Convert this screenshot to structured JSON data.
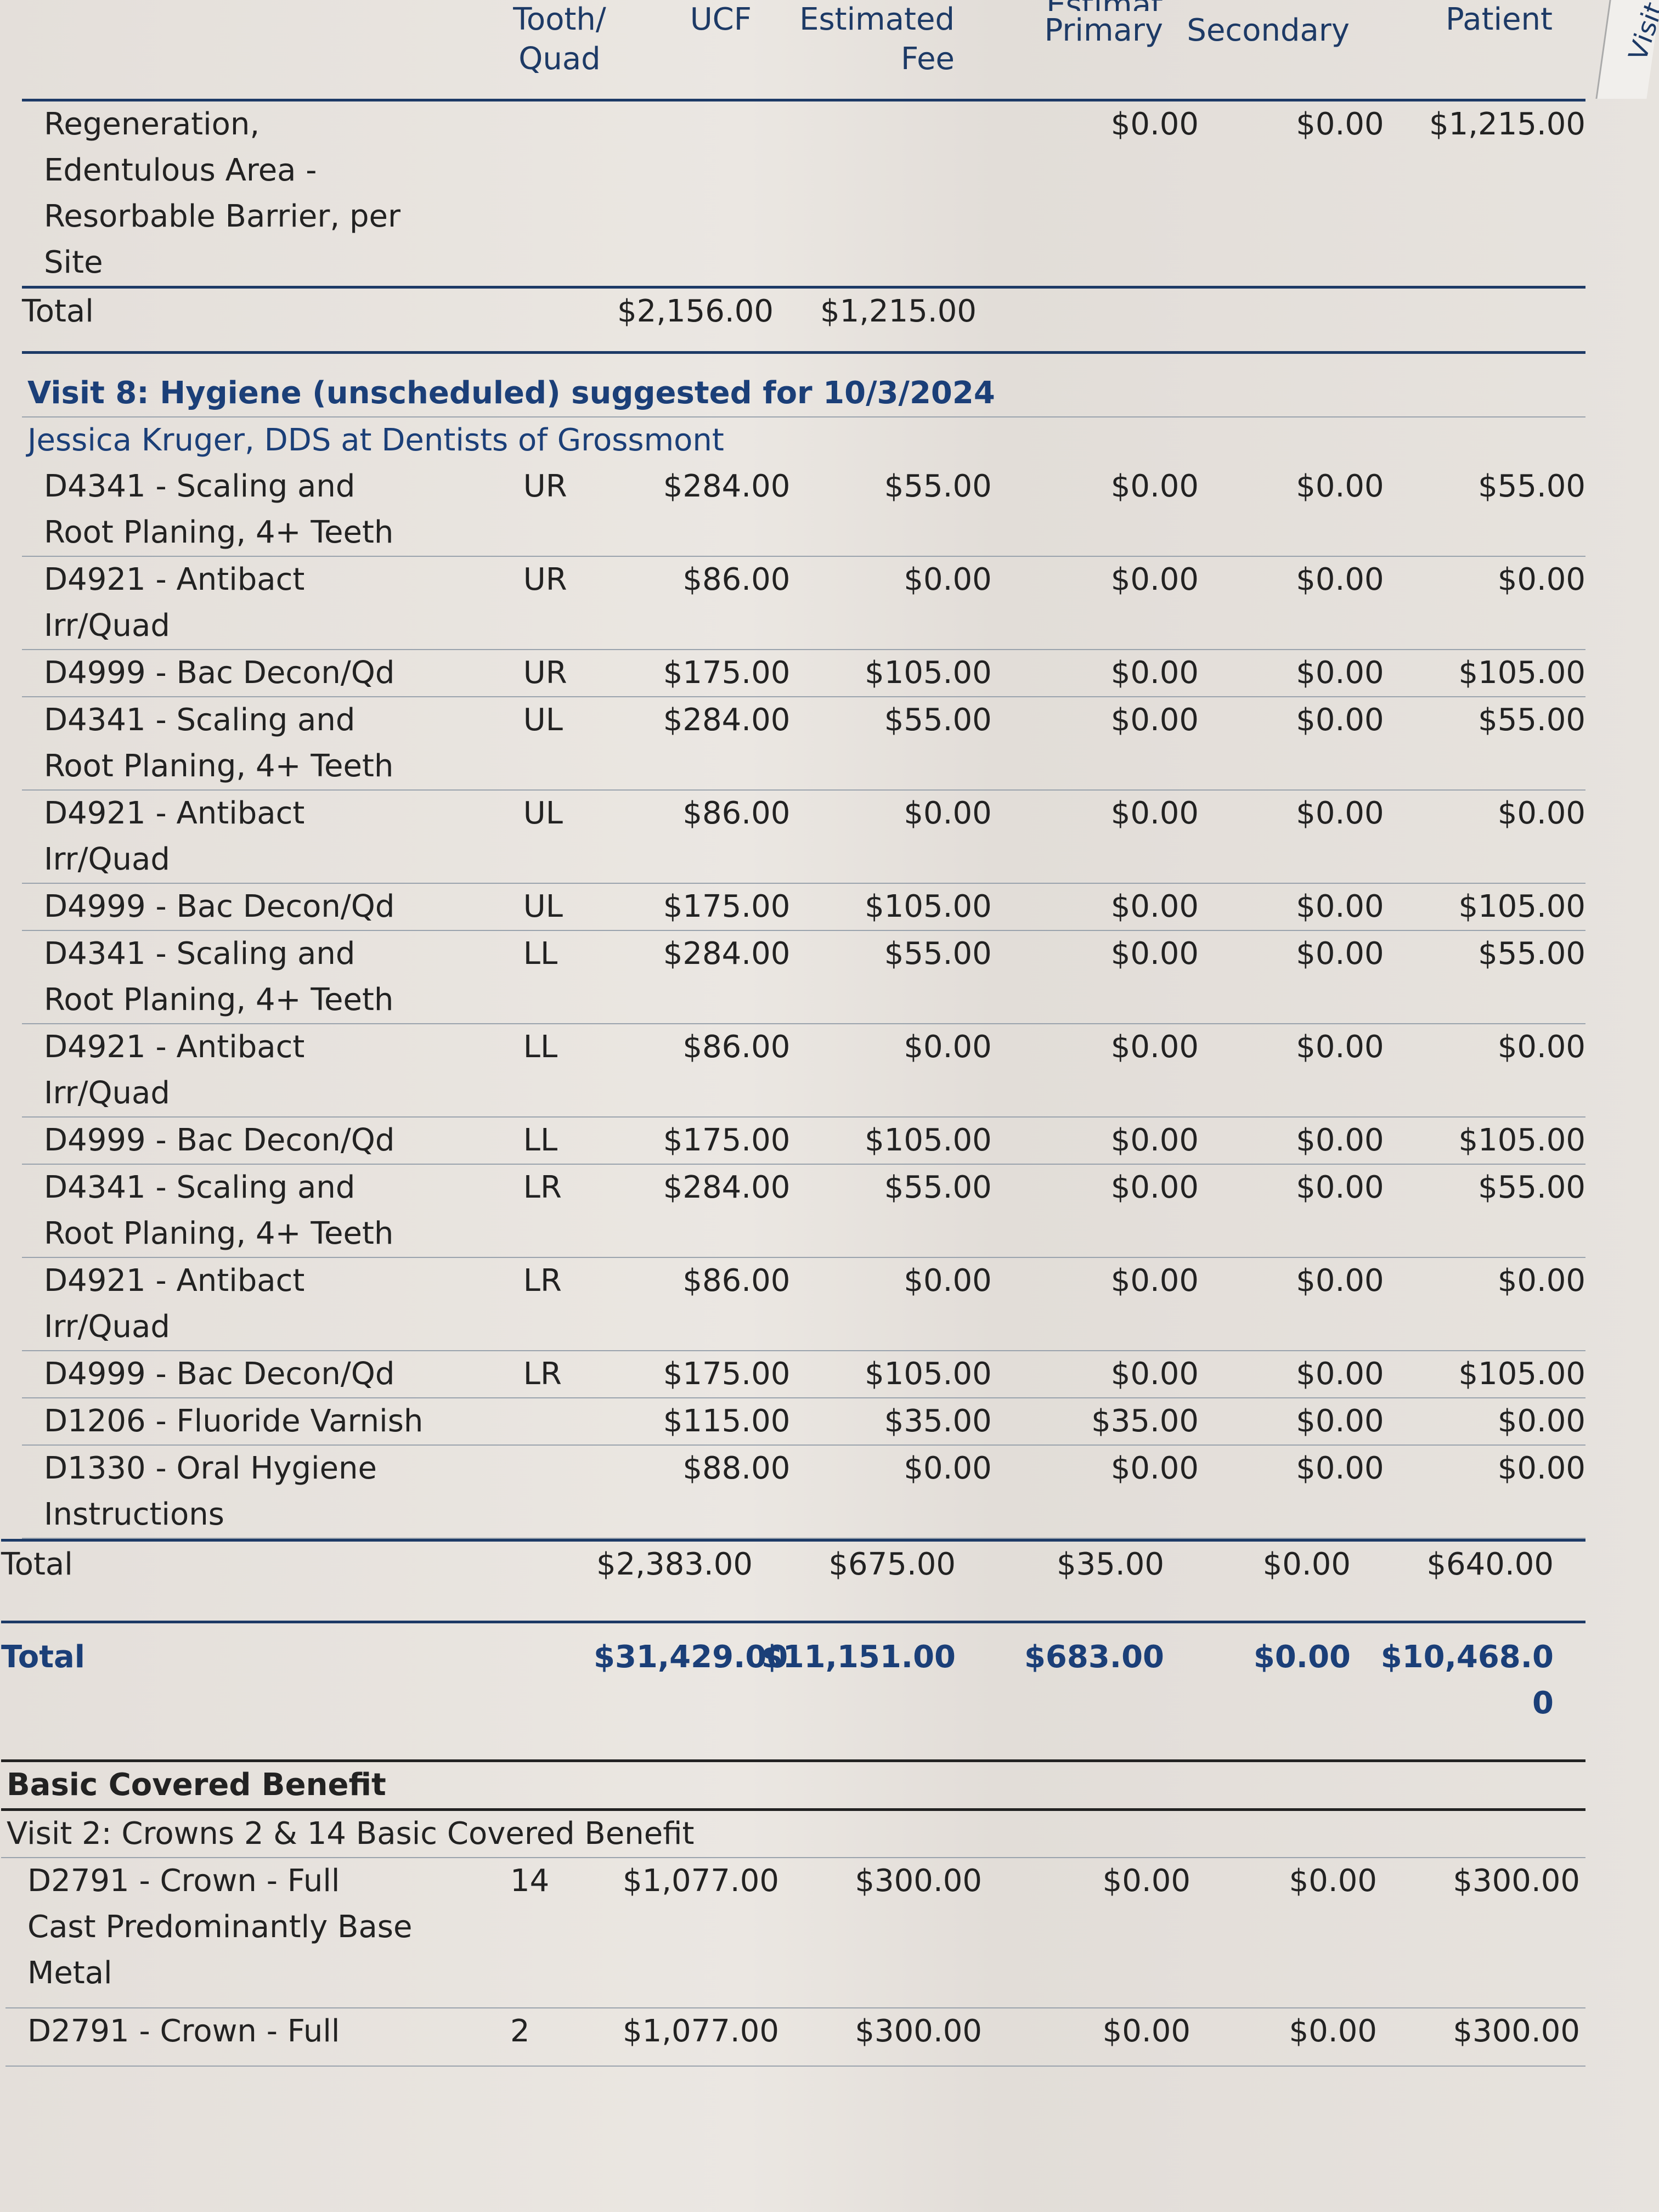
{
  "columns": {
    "tooth_quad": "Tooth/\nQuad",
    "ucf": "UCF",
    "estimated_fee": "Estimated\nFee",
    "primary_partial": "Estimat",
    "primary": "Primary",
    "secondary": "Secondary",
    "patient": "Patient"
  },
  "side_tab": "Visit",
  "previous_item": {
    "description": "Regeneration,\nEdentulous Area -\nResorbable Barrier, per\nSite",
    "tooth": "",
    "ucf": "",
    "fee": "",
    "primary": "$0.00",
    "secondary": "$0.00",
    "patient": "$1,215.00"
  },
  "previous_total": {
    "label": "Total",
    "ucf": "$2,156.00",
    "fee": "$1,215.00",
    "primary": "",
    "secondary": "",
    "patient": ""
  },
  "visit8": {
    "title": "Visit 8: Hygiene (unscheduled) suggested for 10/3/2024",
    "provider": "Jessica Kruger, DDS at Dentists of Grossmont",
    "items": [
      {
        "description": "D4341 - Scaling and\nRoot Planing, 4+ Teeth",
        "tooth": "UR",
        "ucf": "$284.00",
        "fee": "$55.00",
        "primary": "$0.00",
        "secondary": "$0.00",
        "patient": "$55.00"
      },
      {
        "description": "D4921 - Antibact\nIrr/Quad",
        "tooth": "UR",
        "ucf": "$86.00",
        "fee": "$0.00",
        "primary": "$0.00",
        "secondary": "$0.00",
        "patient": "$0.00"
      },
      {
        "description": "D4999 - Bac Decon/Qd",
        "tooth": "UR",
        "ucf": "$175.00",
        "fee": "$105.00",
        "primary": "$0.00",
        "secondary": "$0.00",
        "patient": "$105.00"
      },
      {
        "description": "D4341 - Scaling and\nRoot Planing, 4+ Teeth",
        "tooth": "UL",
        "ucf": "$284.00",
        "fee": "$55.00",
        "primary": "$0.00",
        "secondary": "$0.00",
        "patient": "$55.00"
      },
      {
        "description": "D4921 - Antibact\nIrr/Quad",
        "tooth": "UL",
        "ucf": "$86.00",
        "fee": "$0.00",
        "primary": "$0.00",
        "secondary": "$0.00",
        "patient": "$0.00"
      },
      {
        "description": "D4999 - Bac Decon/Qd",
        "tooth": "UL",
        "ucf": "$175.00",
        "fee": "$105.00",
        "primary": "$0.00",
        "secondary": "$0.00",
        "patient": "$105.00"
      },
      {
        "description": "D4341 - Scaling and\nRoot Planing, 4+ Teeth",
        "tooth": "LL",
        "ucf": "$284.00",
        "fee": "$55.00",
        "primary": "$0.00",
        "secondary": "$0.00",
        "patient": "$55.00"
      },
      {
        "description": "D4921 - Antibact\nIrr/Quad",
        "tooth": "LL",
        "ucf": "$86.00",
        "fee": "$0.00",
        "primary": "$0.00",
        "secondary": "$0.00",
        "patient": "$0.00"
      },
      {
        "description": "D4999 - Bac Decon/Qd",
        "tooth": "LL",
        "ucf": "$175.00",
        "fee": "$105.00",
        "primary": "$0.00",
        "secondary": "$0.00",
        "patient": "$105.00"
      },
      {
        "description": "D4341 - Scaling and\nRoot Planing, 4+ Teeth",
        "tooth": "LR",
        "ucf": "$284.00",
        "fee": "$55.00",
        "primary": "$0.00",
        "secondary": "$0.00",
        "patient": "$55.00"
      },
      {
        "description": "D4921 - Antibact\nIrr/Quad",
        "tooth": "LR",
        "ucf": "$86.00",
        "fee": "$0.00",
        "primary": "$0.00",
        "secondary": "$0.00",
        "patient": "$0.00"
      },
      {
        "description": "D4999 - Bac Decon/Qd",
        "tooth": "LR",
        "ucf": "$175.00",
        "fee": "$105.00",
        "primary": "$0.00",
        "secondary": "$0.00",
        "patient": "$105.00"
      },
      {
        "description": "D1206 - Fluoride Varnish",
        "tooth": "",
        "ucf": "$115.00",
        "fee": "$35.00",
        "primary": "$35.00",
        "secondary": "$0.00",
        "patient": "$0.00"
      },
      {
        "description": "D1330 - Oral Hygiene\nInstructions",
        "tooth": "",
        "ucf": "$88.00",
        "fee": "$0.00",
        "primary": "$0.00",
        "secondary": "$0.00",
        "patient": "$0.00"
      }
    ],
    "total": {
      "label": "Total",
      "ucf": "$2,383.00",
      "fee": "$675.00",
      "primary": "$35.00",
      "secondary": "$0.00",
      "patient": "$640.00"
    }
  },
  "grand_total": {
    "label": "Total",
    "ucf": "$31,429.00",
    "fee": "$11,151.00",
    "primary": "$683.00",
    "secondary": "$0.00",
    "patient": "$10,468.00"
  },
  "basic": {
    "title": "Basic Covered Benefit",
    "visit_title": "Visit 2: Crowns 2 & 14 Basic Covered Benefit",
    "items": [
      {
        "description": "D2791 - Crown - Full\nCast Predominantly Base\nMetal",
        "tooth": "14",
        "ucf": "$1,077.00",
        "fee": "$300.00",
        "primary": "$0.00",
        "secondary": "$0.00",
        "patient": "$300.00"
      },
      {
        "description": "D2791 - Crown - Full",
        "tooth": "2",
        "ucf": "$1,077.00",
        "fee": "$300.00",
        "primary": "$0.00",
        "secondary": "$0.00",
        "patient": "$300.00"
      }
    ]
  },
  "colors": {
    "heading_blue": "#1b3f78",
    "rule_navy": "#1d3a66",
    "paper": "#e6e1dc"
  }
}
